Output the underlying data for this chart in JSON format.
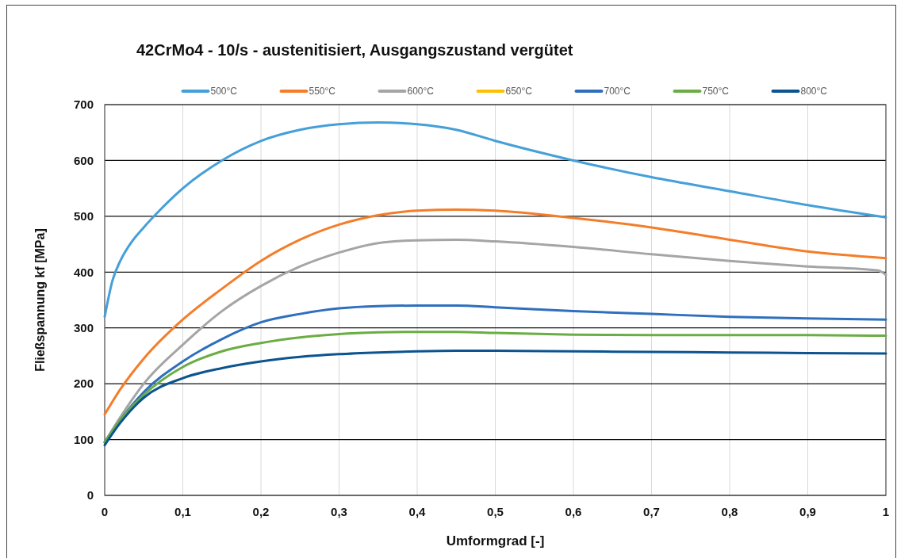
{
  "chart_data": {
    "type": "line",
    "title": "42CrMo4 - 10/s - austenitisiert, Ausgangszustand vergütet",
    "xlabel": "Umformgrad [-]",
    "ylabel": "Fließspannung kf [MPa]",
    "x": [
      0,
      0.02,
      0.05,
      0.1,
      0.15,
      0.2,
      0.25,
      0.3,
      0.35,
      0.4,
      0.45,
      0.5,
      0.6,
      0.7,
      0.8,
      0.9,
      1
    ],
    "series": [
      {
        "name": "500°C",
        "color": "#459fd9",
        "x": [
          0,
          0.01,
          0.02,
          0.035,
          0.05,
          0.07,
          0.1,
          0.15,
          0.2,
          0.25,
          0.3,
          0.35,
          0.4,
          0.45,
          0.5,
          0.6,
          0.7,
          0.8,
          0.9,
          1
        ],
        "values": [
          320,
          385,
          420,
          455,
          480,
          510,
          550,
          600,
          635,
          655,
          665,
          668,
          665,
          655,
          635,
          600,
          570,
          545,
          520,
          498
        ]
      },
      {
        "name": "550°C",
        "color": "#f47d2a",
        "values": [
          145,
          190,
          245,
          315,
          370,
          420,
          458,
          485,
          502,
          510,
          512,
          510,
          497,
          480,
          458,
          437,
          425
        ]
      },
      {
        "name": "600°C",
        "color": "#a5a5a5",
        "x": [
          0,
          0.02,
          0.05,
          0.1,
          0.15,
          0.2,
          0.25,
          0.3,
          0.35,
          0.4,
          0.45,
          0.5,
          0.6,
          0.7,
          0.8,
          0.9,
          0.99,
          1
        ],
        "values": [
          95,
          140,
          200,
          270,
          330,
          375,
          410,
          435,
          452,
          457,
          458,
          455,
          445,
          432,
          420,
          410,
          403,
          395
        ]
      },
      {
        "name": "650°C",
        "color": "#ffc000",
        "values": [
          null,
          null,
          null,
          null,
          null,
          null,
          null,
          null,
          null,
          null,
          null,
          null,
          null,
          null,
          null,
          null,
          null
        ]
      },
      {
        "name": "700°C",
        "color": "#2e6fbe",
        "values": [
          95,
          135,
          185,
          240,
          280,
          310,
          325,
          335,
          339,
          340,
          340,
          337,
          330,
          325,
          320,
          317,
          315
        ]
      },
      {
        "name": "750°C",
        "color": "#6aad45",
        "values": [
          95,
          135,
          180,
          230,
          258,
          273,
          283,
          289,
          292,
          293,
          293,
          291,
          288,
          287,
          287,
          287,
          286
        ]
      },
      {
        "name": "800°C",
        "color": "#0b5490",
        "values": [
          90,
          130,
          175,
          210,
          228,
          240,
          248,
          253,
          256,
          258,
          259,
          259,
          258,
          257,
          256,
          255,
          254
        ]
      }
    ],
    "xlim": [
      0,
      1
    ],
    "xticks": [
      {
        "value": 0,
        "label": "0"
      },
      {
        "value": 0.1,
        "label": "0,1"
      },
      {
        "value": 0.2,
        "label": "0,2"
      },
      {
        "value": 0.3,
        "label": "0,3"
      },
      {
        "value": 0.4,
        "label": "0,4"
      },
      {
        "value": 0.5,
        "label": "0,5"
      },
      {
        "value": 0.6,
        "label": "0,6"
      },
      {
        "value": 0.7,
        "label": "0,7"
      },
      {
        "value": 0.8,
        "label": "0,8"
      },
      {
        "value": 0.9,
        "label": "0,9"
      },
      {
        "value": 1,
        "label": "1"
      }
    ],
    "ylim": [
      0,
      700
    ],
    "yticks": [
      0,
      100,
      200,
      300,
      400,
      500,
      600,
      700
    ],
    "grid": true,
    "legend": "top",
    "line_style": "solid"
  }
}
